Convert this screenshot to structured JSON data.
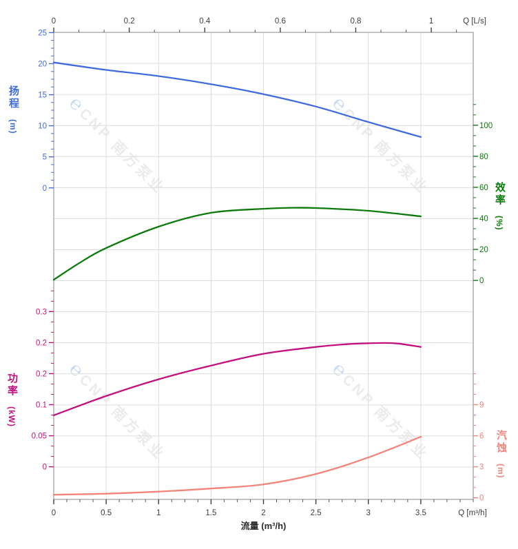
{
  "watermark": {
    "logo_glyph": "℮",
    "text": "CNP 南方泵业"
  },
  "chart_data": {
    "type": "line",
    "title": "",
    "x_axis_bottom": {
      "label": "流量 (m³/h)",
      "corner_label": "Q [m³/h]",
      "tick_labels": [
        "0",
        "0.5",
        "1",
        "1.5",
        "2",
        "2.5",
        "3",
        "3.5"
      ],
      "tick_values": [
        0,
        0.5,
        1,
        1.5,
        2,
        2.5,
        3,
        3.5
      ],
      "range": [
        0,
        4
      ],
      "unit": "m³/h"
    },
    "x_axis_top": {
      "corner_label": "Q [L/s]",
      "tick_labels": [
        "0",
        "0.2",
        "0.4",
        "0.6",
        "0.8",
        "1"
      ],
      "tick_values": [
        0,
        0.2,
        0.4,
        0.6,
        0.8,
        1
      ],
      "range": [
        0,
        1.11
      ],
      "unit": "L/s"
    },
    "y_axes": [
      {
        "id": "head",
        "title": "扬程",
        "unit": "(m)",
        "side": "left",
        "color": "#3f6bdd",
        "tick_labels": [
          "25",
          "20",
          "15",
          "10",
          "5",
          "0"
        ]
      },
      {
        "id": "eff",
        "title": "效率",
        "unit": "(%)",
        "side": "right",
        "color": "#0b7a0b",
        "tick_labels": [
          "100",
          "80",
          "60",
          "40",
          "20",
          "0"
        ]
      },
      {
        "id": "power",
        "title": "功率",
        "unit": "(kW)",
        "side": "left",
        "color": "#c4107e",
        "tick_labels": [
          "0.3",
          "0.2",
          "0.2",
          "0.1",
          "0.05",
          "0"
        ]
      },
      {
        "id": "npsh",
        "title": "汽蚀",
        "unit": "(m)",
        "side": "right",
        "color": "#f2847a",
        "tick_labels": [
          "9",
          "6",
          "3",
          "0"
        ]
      }
    ],
    "series": [
      {
        "name": "扬程 (head)",
        "axis": "head",
        "color": "#3f6bdd",
        "q": [
          0,
          0.5,
          1,
          1.5,
          2,
          2.5,
          3,
          3.5
        ],
        "values": [
          20.2,
          19.0,
          18.0,
          16.7,
          15.1,
          13.1,
          10.6,
          8.2
        ]
      },
      {
        "name": "效率 (efficiency)",
        "axis": "eff",
        "color": "#0b7a0b",
        "q": [
          0,
          0.25,
          0.5,
          1,
          1.5,
          2,
          2.25,
          2.5,
          3,
          3.5
        ],
        "values": [
          0.5,
          11.5,
          20.9,
          34.7,
          43.6,
          46.2,
          46.8,
          46.7,
          44.9,
          41.3
        ]
      },
      {
        "name": "功率 (power)",
        "axis": "power",
        "color": "#c4107e",
        "q": [
          0,
          0.5,
          1,
          1.5,
          2,
          2.5,
          2.75,
          3,
          3.25,
          3.5
        ],
        "values": [
          0.083,
          0.114,
          0.141,
          0.163,
          0.182,
          0.193,
          0.197,
          0.199,
          0.199,
          0.193
        ]
      },
      {
        "name": "汽蚀 (NPSH)",
        "axis": "npsh",
        "color": "#f2847a",
        "q": [
          0,
          0.5,
          1,
          1.5,
          2,
          2.5,
          3,
          3.5
        ],
        "values": [
          0.3,
          0.4,
          0.6,
          0.9,
          1.3,
          2.3,
          3.9,
          5.9
        ]
      }
    ],
    "grid": true,
    "legend": "none"
  },
  "colors": {
    "grid": "#dcdcdc",
    "axis_line": "#9a9a9a",
    "x_tick_text": "#3d3d3d"
  }
}
